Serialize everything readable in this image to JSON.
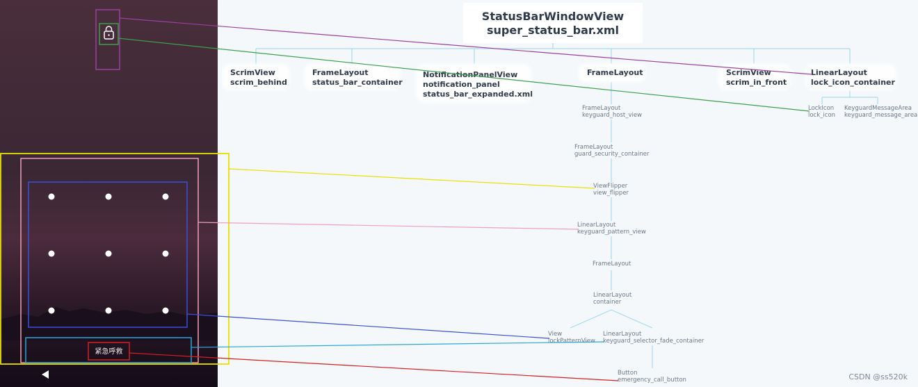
{
  "diagram": {
    "root": {
      "line1": "StatusBarWindowView",
      "line2": "super_status_bar.xml"
    },
    "level1": [
      {
        "line1": "ScrimView",
        "line2": "scrim_behind"
      },
      {
        "line1": "FrameLayout",
        "line2": "status_bar_container"
      },
      {
        "line1": "NotificationPanelView",
        "line2": "notification_panel",
        "line3": "status_bar_expanded.xml"
      },
      {
        "line1": "FrameLayout"
      },
      {
        "line1": "ScrimView",
        "line2": "scrim_in_front"
      },
      {
        "line1": "LinearLayout",
        "line2": "lock_icon_container"
      }
    ],
    "lock_children": [
      {
        "line1": "LockIcon",
        "line2": "lock_icon"
      },
      {
        "line1": "KeyguardMessageArea",
        "line2": "keyguard_message_area"
      }
    ],
    "chain": [
      {
        "line1": "FrameLayout",
        "line2": "keyguard_host_view"
      },
      {
        "line1": "FrameLayout",
        "line2": "guard_security_container"
      },
      {
        "line1": "ViewFlipper",
        "line2": "view_flipper"
      },
      {
        "line1": "LinearLayout",
        "line2": "keyguard_pattern_view"
      },
      {
        "line1": "FrameLayout"
      },
      {
        "line1": "LinearLayout",
        "line2": "container"
      }
    ],
    "container_children": [
      {
        "line1": "View",
        "line2": "lockPatternView"
      },
      {
        "line1": "LinearLayout",
        "line2": "keyguard_selector_fade_container"
      }
    ],
    "button": {
      "line1": "Button",
      "line2": "emergency_call_button"
    }
  },
  "phone": {
    "emergency_label": "紧急呼救",
    "pattern_dots": 9
  },
  "colors": {
    "lock": "#9b3fa3",
    "lock_icon": "#3aa04a",
    "yellow": "#e8e000",
    "pink": "#f0a0b8",
    "blue": "#3b4fd8",
    "cyan": "#2aa6d8",
    "red": "#d42020",
    "tree_line": "#a9d9ee"
  },
  "watermark": "CSDN @ss520k"
}
